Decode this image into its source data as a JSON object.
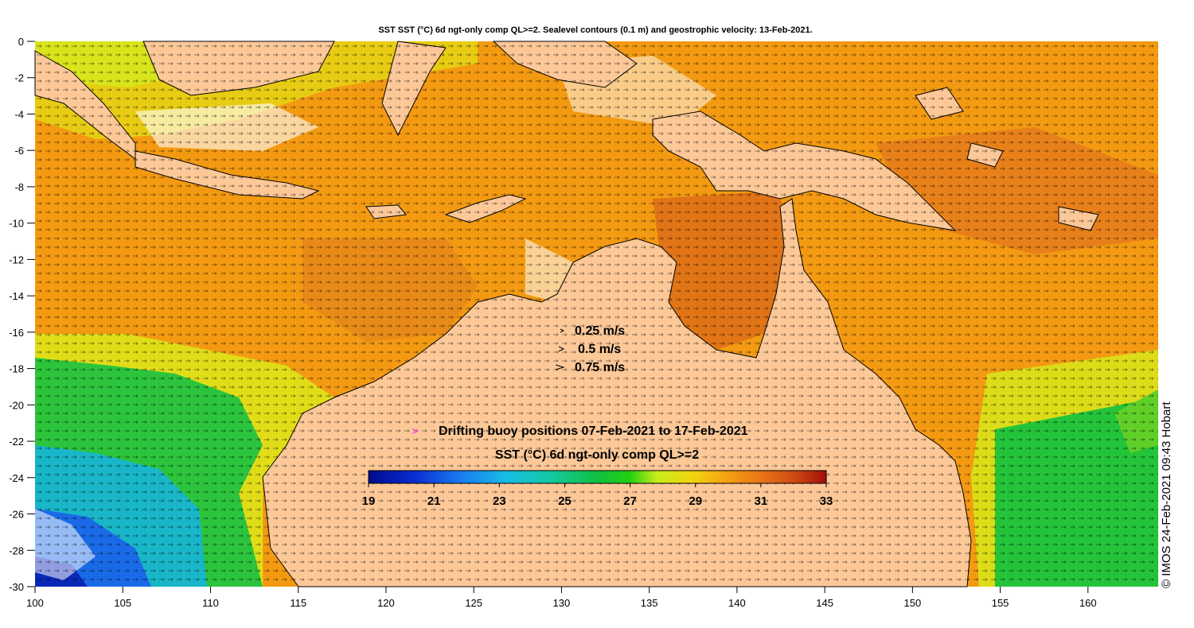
{
  "title": "SST SST (°C) 6d ngt-only comp QL>=2. Sealevel contours (0.1 m) and geostrophic velocity: 13-Feb-2021.",
  "axes": {
    "x_ticks": [
      "100",
      "105",
      "110",
      "115",
      "120",
      "125",
      "130",
      "135",
      "140",
      "145",
      "150",
      "155",
      "160"
    ],
    "y_ticks": [
      "0",
      "-2",
      "-4",
      "-6",
      "-8",
      "-10",
      "-12",
      "-14",
      "-16",
      "-18",
      "-20",
      "-22",
      "-24",
      "-26",
      "-28",
      "-30"
    ],
    "lon_range": [
      100,
      164
    ],
    "lat_range": [
      -30,
      0
    ]
  },
  "velocity_legend": {
    "items": [
      "0.25 m/s",
      "0.5 m/s",
      "0.75 m/s"
    ]
  },
  "buoy_legend": {
    "symbol": ">",
    "text": "Drifting buoy positions 07-Feb-2021 to 17-Feb-2021"
  },
  "colorbar": {
    "title": "SST (°C) 6d ngt-only comp QL>=2",
    "labels": [
      "19",
      "21",
      "23",
      "25",
      "27",
      "29",
      "31",
      "33"
    ],
    "range": [
      19,
      33
    ]
  },
  "credit": "© IMOS 24-Feb-2021 09:43 Hobart",
  "colors": {
    "land": "#fcc898",
    "warm": "#f39a12",
    "hot": "#e07416",
    "yellow": "#e2e618",
    "green": "#20c43a",
    "cyan": "#16bcd8",
    "blue": "#1a6ae8",
    "buoy": "#ff30ff"
  }
}
